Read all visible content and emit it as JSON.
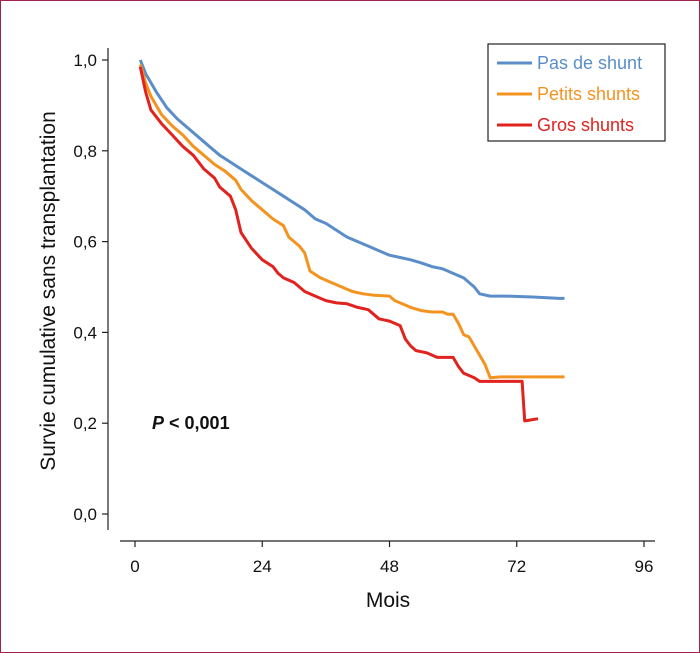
{
  "chart_data": {
    "type": "line",
    "xlabel": "Mois",
    "ylabel": "Survie cumulative sans transplantation",
    "xlim": [
      0,
      96
    ],
    "ylim": [
      0,
      1
    ],
    "xticks": [
      "0",
      "24",
      "48",
      "72",
      "96"
    ],
    "yticks": [
      "0,0",
      "0,2",
      "0,4",
      "0,6",
      "0,8",
      "1,0"
    ],
    "annotation": {
      "italic": "P",
      "rest": " < 0,001"
    },
    "legend_position": "top-right",
    "series": [
      {
        "name": "Pas de shunt",
        "color": "#5b8ec9",
        "points": [
          [
            1,
            1.0
          ],
          [
            2,
            0.97
          ],
          [
            4,
            0.93
          ],
          [
            6,
            0.895
          ],
          [
            8,
            0.87
          ],
          [
            10,
            0.85
          ],
          [
            12,
            0.83
          ],
          [
            14,
            0.81
          ],
          [
            16,
            0.79
          ],
          [
            18,
            0.775
          ],
          [
            20,
            0.76
          ],
          [
            22,
            0.745
          ],
          [
            24,
            0.73
          ],
          [
            26,
            0.715
          ],
          [
            28,
            0.7
          ],
          [
            30,
            0.685
          ],
          [
            32,
            0.67
          ],
          [
            34,
            0.65
          ],
          [
            36,
            0.64
          ],
          [
            38,
            0.625
          ],
          [
            40,
            0.61
          ],
          [
            42,
            0.6
          ],
          [
            44,
            0.59
          ],
          [
            46,
            0.58
          ],
          [
            48,
            0.57
          ],
          [
            50,
            0.565
          ],
          [
            52,
            0.56
          ],
          [
            54,
            0.553
          ],
          [
            56,
            0.545
          ],
          [
            58,
            0.54
          ],
          [
            60,
            0.53
          ],
          [
            62,
            0.52
          ],
          [
            64,
            0.5
          ],
          [
            65,
            0.485
          ],
          [
            67,
            0.48
          ],
          [
            70,
            0.48
          ],
          [
            75,
            0.478
          ],
          [
            80,
            0.475
          ],
          [
            81,
            0.475
          ]
        ]
      },
      {
        "name": "Petits shunts",
        "color": "#f39420",
        "points": [
          [
            1,
            0.99
          ],
          [
            2,
            0.95
          ],
          [
            3,
            0.92
          ],
          [
            5,
            0.88
          ],
          [
            7,
            0.855
          ],
          [
            9,
            0.835
          ],
          [
            11,
            0.81
          ],
          [
            13,
            0.79
          ],
          [
            15,
            0.77
          ],
          [
            17,
            0.755
          ],
          [
            19,
            0.735
          ],
          [
            20,
            0.715
          ],
          [
            22,
            0.69
          ],
          [
            24,
            0.67
          ],
          [
            26,
            0.65
          ],
          [
            28,
            0.635
          ],
          [
            29,
            0.61
          ],
          [
            31,
            0.59
          ],
          [
            32,
            0.575
          ],
          [
            33,
            0.535
          ],
          [
            35,
            0.52
          ],
          [
            37,
            0.51
          ],
          [
            39,
            0.5
          ],
          [
            41,
            0.49
          ],
          [
            43,
            0.485
          ],
          [
            45,
            0.482
          ],
          [
            48,
            0.48
          ],
          [
            49,
            0.47
          ],
          [
            50,
            0.465
          ],
          [
            52,
            0.455
          ],
          [
            54,
            0.448
          ],
          [
            56,
            0.445
          ],
          [
            58,
            0.445
          ],
          [
            59,
            0.44
          ],
          [
            60,
            0.44
          ],
          [
            61,
            0.42
          ],
          [
            62,
            0.395
          ],
          [
            63,
            0.39
          ],
          [
            64,
            0.37
          ],
          [
            65,
            0.35
          ],
          [
            66,
            0.33
          ],
          [
            67,
            0.3
          ],
          [
            69,
            0.302
          ],
          [
            72,
            0.302
          ],
          [
            77,
            0.302
          ],
          [
            81,
            0.302
          ]
        ]
      },
      {
        "name": "Gros shunts",
        "color": "#e0231e",
        "points": [
          [
            1,
            0.985
          ],
          [
            2,
            0.93
          ],
          [
            3,
            0.89
          ],
          [
            5,
            0.86
          ],
          [
            7,
            0.835
          ],
          [
            9,
            0.81
          ],
          [
            11,
            0.79
          ],
          [
            13,
            0.76
          ],
          [
            15,
            0.74
          ],
          [
            16,
            0.72
          ],
          [
            18,
            0.7
          ],
          [
            19,
            0.67
          ],
          [
            20,
            0.62
          ],
          [
            22,
            0.585
          ],
          [
            24,
            0.56
          ],
          [
            26,
            0.545
          ],
          [
            27,
            0.53
          ],
          [
            28,
            0.52
          ],
          [
            30,
            0.51
          ],
          [
            32,
            0.49
          ],
          [
            34,
            0.48
          ],
          [
            36,
            0.47
          ],
          [
            38,
            0.465
          ],
          [
            40,
            0.463
          ],
          [
            42,
            0.455
          ],
          [
            44,
            0.45
          ],
          [
            46,
            0.43
          ],
          [
            48,
            0.425
          ],
          [
            50,
            0.415
          ],
          [
            51,
            0.385
          ],
          [
            52,
            0.37
          ],
          [
            53,
            0.36
          ],
          [
            55,
            0.355
          ],
          [
            57,
            0.345
          ],
          [
            60,
            0.345
          ],
          [
            61,
            0.325
          ],
          [
            62,
            0.31
          ],
          [
            64,
            0.3
          ],
          [
            65,
            0.292
          ],
          [
            70,
            0.292
          ],
          [
            72,
            0.292
          ],
          [
            73,
            0.292
          ],
          [
            73.5,
            0.205
          ],
          [
            75,
            0.208
          ],
          [
            76,
            0.21
          ]
        ]
      }
    ]
  }
}
